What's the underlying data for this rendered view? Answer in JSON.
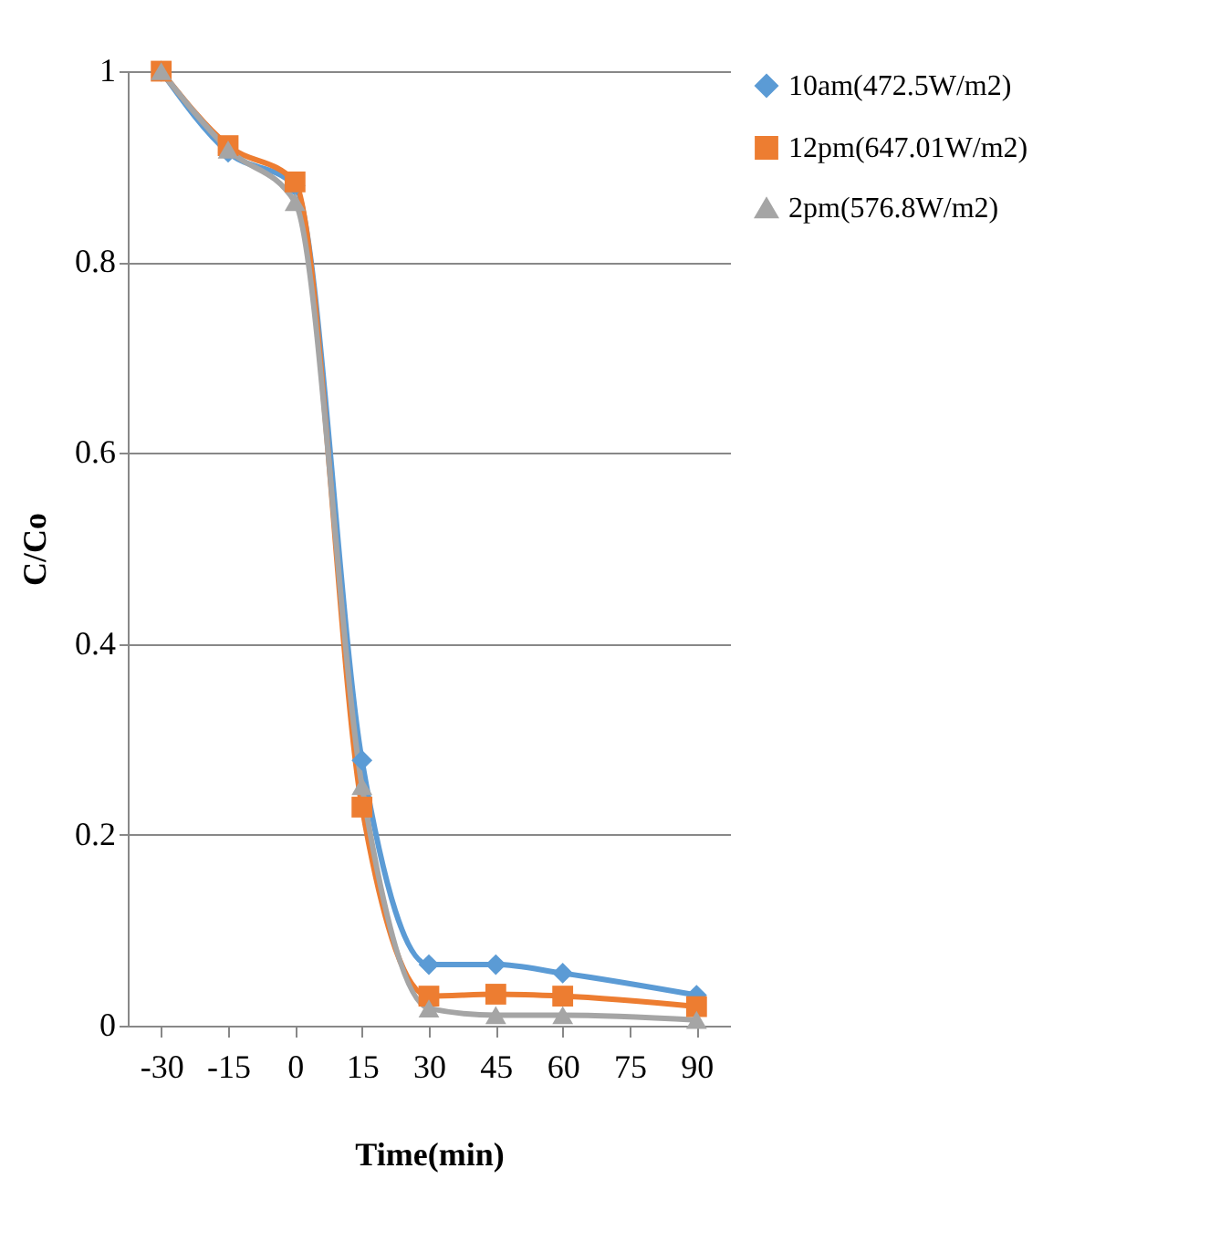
{
  "chart_data": {
    "type": "line",
    "xlabel": "Time(min)",
    "ylabel": "C/Co",
    "x": [
      -30,
      -15,
      0,
      15,
      30,
      45,
      60,
      90
    ],
    "xlim": [
      -37.5,
      97.5
    ],
    "xticks": [
      -30,
      -15,
      0,
      15,
      30,
      45,
      60,
      75,
      90
    ],
    "ylim": [
      0,
      1
    ],
    "yticks": [
      0,
      0.2,
      0.4,
      0.6,
      0.8,
      1
    ],
    "grid": "y",
    "legend": "right",
    "series": [
      {
        "name": "10am(472.5W/m2)",
        "color": "#5b9bd5",
        "marker": "diamond",
        "values": [
          1,
          0.915,
          0.88,
          0.278,
          0.064,
          0.064,
          0.055,
          0.032
        ]
      },
      {
        "name": "12pm(647.01W/m2)",
        "color": "#ed7d31",
        "marker": "square",
        "values": [
          1,
          0.922,
          0.884,
          0.229,
          0.031,
          0.033,
          0.031,
          0.02
        ]
      },
      {
        "name": "2pm(576.8W/m2)",
        "color": "#a5a5a5",
        "marker": "triangle",
        "values": [
          1,
          0.918,
          0.863,
          0.251,
          0.018,
          0.011,
          0.011,
          0.006
        ]
      }
    ]
  }
}
